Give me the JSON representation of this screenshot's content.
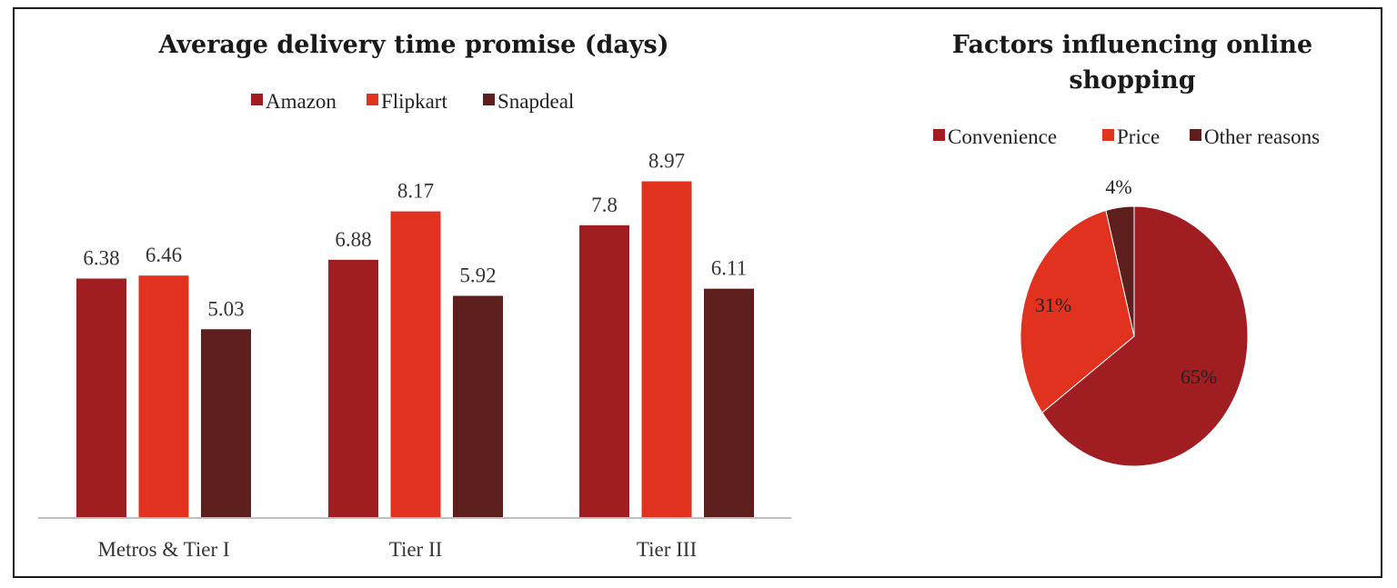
{
  "chart_data": [
    {
      "type": "bar",
      "title": "Average delivery time promise (days)",
      "categories": [
        "Metros & Tier I",
        "Tier II",
        "Tier III"
      ],
      "series": [
        {
          "name": "Amazon",
          "values": [
            6.38,
            6.88,
            7.8
          ],
          "labels": [
            "6.38",
            "6.88",
            "7.8"
          ],
          "color": "#A01E22"
        },
        {
          "name": "Flipkart",
          "values": [
            6.46,
            8.17,
            8.97
          ],
          "labels": [
            "6.46",
            "8.17",
            "8.97"
          ],
          "color": "#E0321E"
        },
        {
          "name": "Snapdeal",
          "values": [
            5.03,
            5.92,
            6.11
          ],
          "labels": [
            "5.03",
            "5.92",
            "6.11"
          ],
          "color": "#5E1E1E"
        }
      ],
      "ylim": [
        0,
        10
      ],
      "grid": false,
      "legend_position": "top"
    },
    {
      "type": "pie",
      "title_lines": [
        "Factors influencing online",
        "shopping"
      ],
      "slices": [
        {
          "name": "Convenience",
          "value": 65,
          "label": "65%",
          "color": "#A01E22"
        },
        {
          "name": "Price",
          "value": 31,
          "label": "31%",
          "color": "#E0321E"
        },
        {
          "name": "Other reasons",
          "value": 4,
          "label": "4%",
          "color": "#5E1E1E"
        }
      ],
      "legend_position": "top"
    }
  ]
}
